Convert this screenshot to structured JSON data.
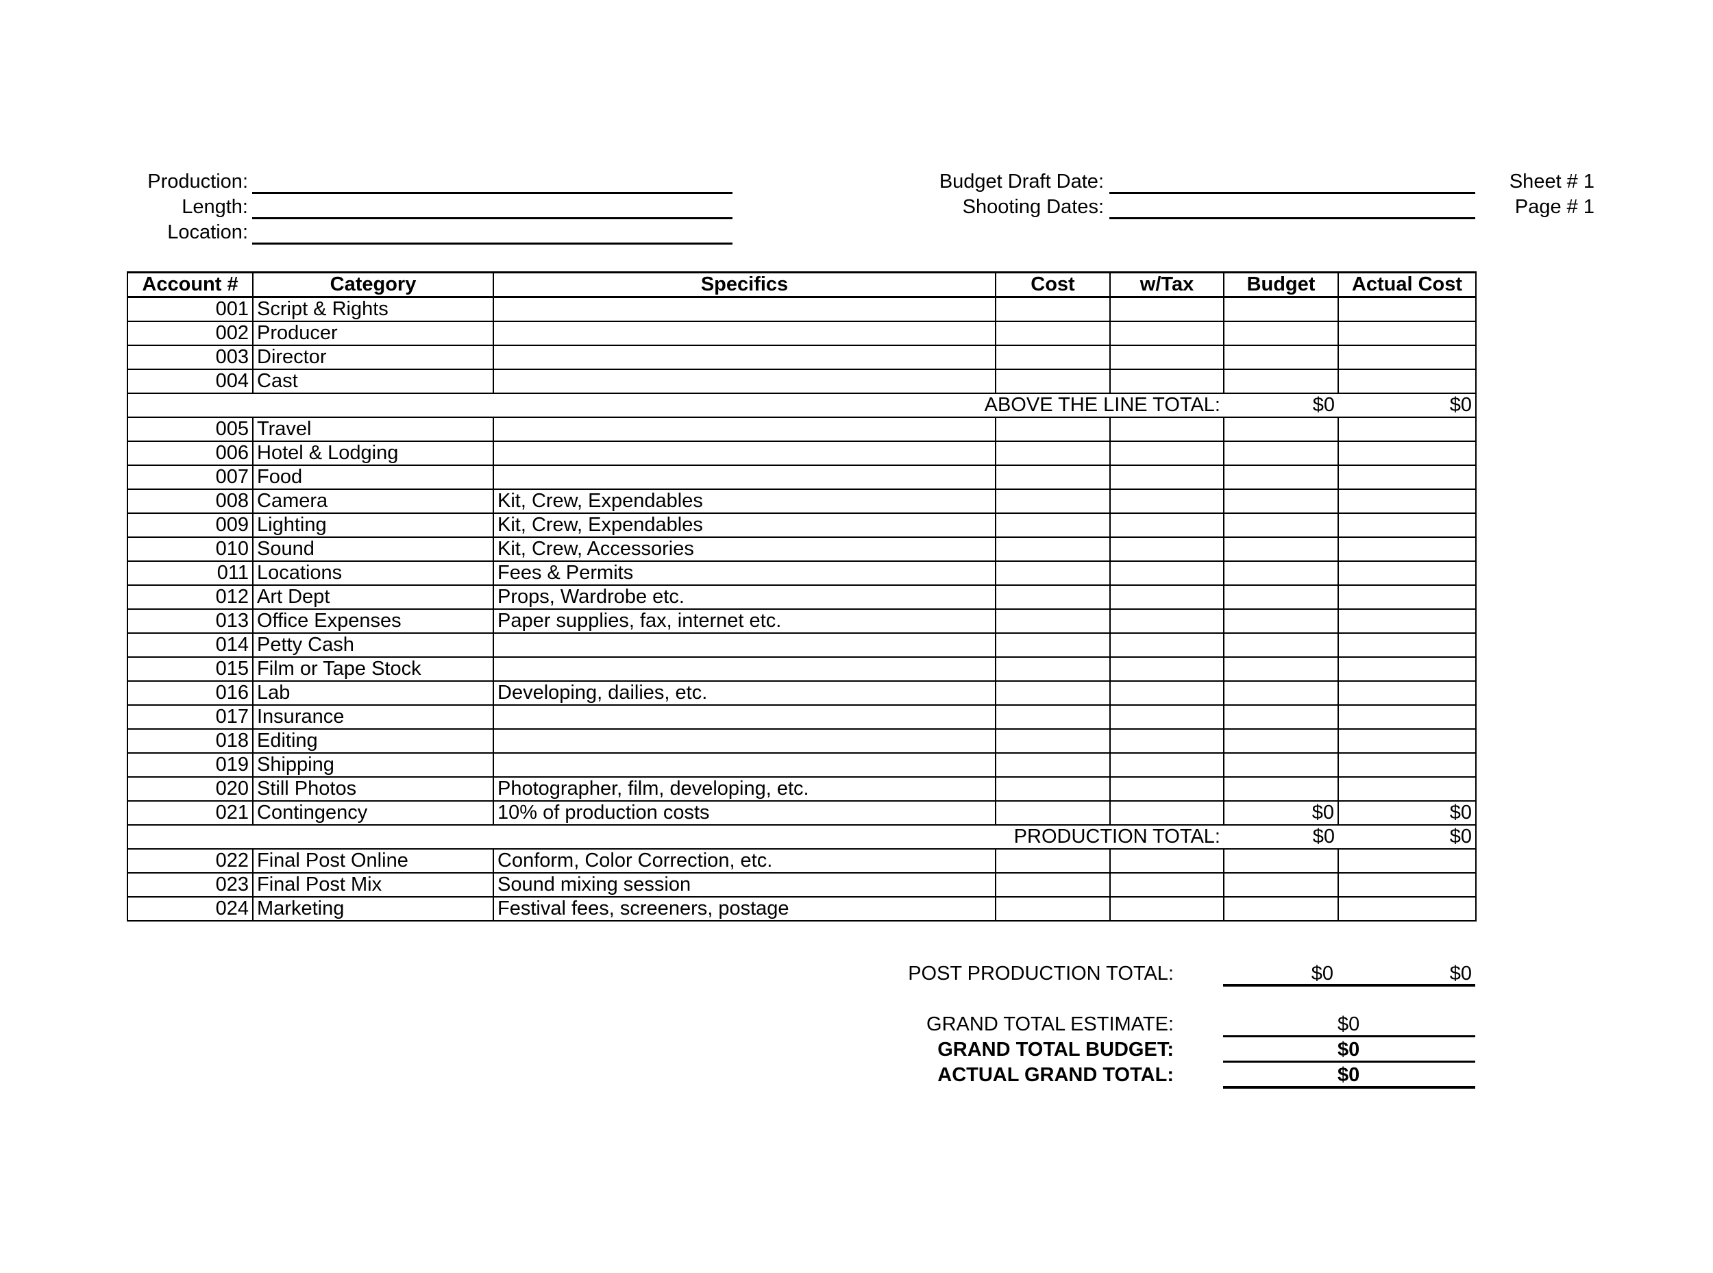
{
  "header": {
    "production_label": "Production:",
    "length_label": "Length:",
    "location_label": "Location:",
    "budget_draft_date_label": "Budget Draft Date:",
    "shooting_dates_label": "Shooting Dates:",
    "sheet": "Sheet # 1",
    "page": "Page # 1"
  },
  "table": {
    "columns": [
      "Account #",
      "Category",
      "Specifics",
      "Cost",
      "w/Tax",
      "Budget",
      "Actual Cost"
    ],
    "rows": [
      {
        "account": "001",
        "category": "Script & Rights",
        "specifics": ""
      },
      {
        "account": "002",
        "category": "Producer",
        "specifics": ""
      },
      {
        "account": "003",
        "category": "Director",
        "specifics": ""
      },
      {
        "account": "004",
        "category": "Cast",
        "specifics": ""
      },
      {
        "total": true,
        "label": "ABOVE THE LINE TOTAL:",
        "budget": "$0",
        "actual": "$0"
      },
      {
        "account": "005",
        "category": "Travel",
        "specifics": ""
      },
      {
        "account": "006",
        "category": "Hotel & Lodging",
        "specifics": ""
      },
      {
        "account": "007",
        "category": "Food",
        "specifics": ""
      },
      {
        "account": "008",
        "category": "Camera",
        "specifics": "Kit, Crew, Expendables"
      },
      {
        "account": "009",
        "category": "Lighting",
        "specifics": "Kit, Crew, Expendables"
      },
      {
        "account": "010",
        "category": "Sound",
        "specifics": "Kit, Crew, Accessories"
      },
      {
        "account": "011",
        "category": "Locations",
        "specifics": "Fees & Permits"
      },
      {
        "account": "012",
        "category": "Art Dept",
        "specifics": "Props, Wardrobe etc."
      },
      {
        "account": "013",
        "category": "Office Expenses",
        "specifics": "Paper supplies, fax, internet etc."
      },
      {
        "account": "014",
        "category": "Petty Cash",
        "specifics": ""
      },
      {
        "account": "015",
        "category": "Film or Tape Stock",
        "specifics": ""
      },
      {
        "account": "016",
        "category": "Lab",
        "specifics": "Developing, dailies, etc."
      },
      {
        "account": "017",
        "category": "Insurance",
        "specifics": ""
      },
      {
        "account": "018",
        "category": "Editing",
        "specifics": ""
      },
      {
        "account": "019",
        "category": "Shipping",
        "specifics": ""
      },
      {
        "account": "020",
        "category": "Still Photos",
        "specifics": "Photographer, film, developing, etc."
      },
      {
        "account": "021",
        "category": "Contingency",
        "specifics": "10% of production costs",
        "budget": "$0",
        "actual": "$0"
      },
      {
        "total": true,
        "label": "PRODUCTION TOTAL:",
        "budget": "$0",
        "actual": "$0"
      },
      {
        "account": "022",
        "category": "Final Post Online",
        "specifics": "Conform, Color Correction, etc."
      },
      {
        "account": "023",
        "category": "Final Post Mix",
        "specifics": "Sound mixing session"
      },
      {
        "account": "024",
        "category": "Marketing",
        "specifics": "Festival fees, screeners, postage"
      }
    ]
  },
  "post_production_total": {
    "label": "POST PRODUCTION TOTAL:",
    "budget": "$0",
    "actual": "$0"
  },
  "grand_totals": {
    "estimate_label": "GRAND TOTAL ESTIMATE:",
    "estimate_value": "$0",
    "budget_label": "GRAND TOTAL BUDGET:",
    "budget_value": "$0",
    "actual_label": "ACTUAL GRAND TOTAL:",
    "actual_value": "$0"
  }
}
